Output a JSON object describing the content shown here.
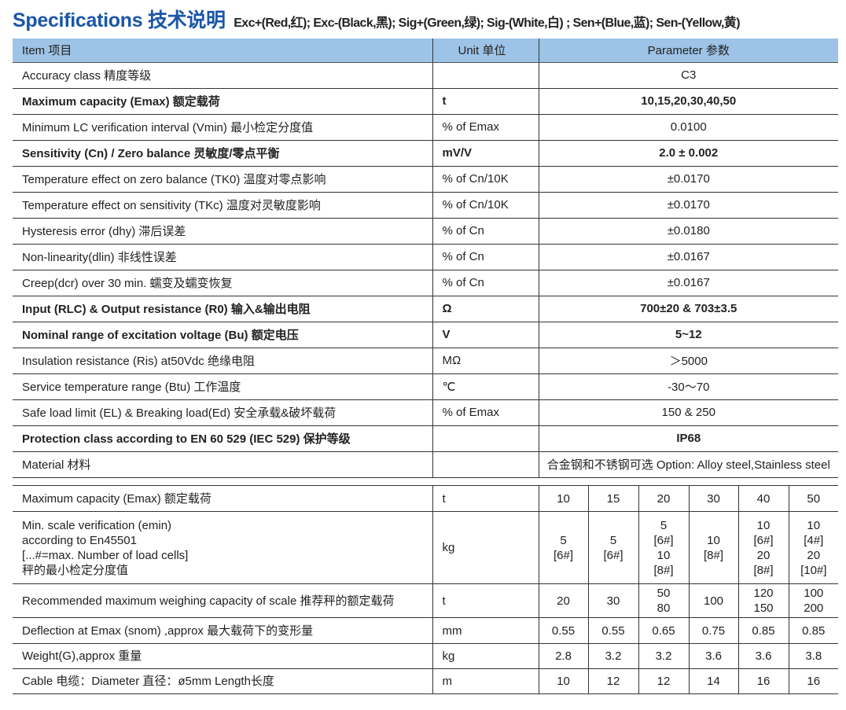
{
  "title": {
    "main": "Specifications 技术说明",
    "wiring": "Exc+(Red,红); Exc-(Black,黑); Sig+(Green,绿); Sig-(White,白) ; Sen+(Blue,蓝); Sen-(Yellow,黄)"
  },
  "colors": {
    "title": "#1a56a6",
    "header_bg": "#9dc3e7"
  },
  "spec_table": {
    "headers": [
      "Item 项目",
      "Unit 单位",
      "Parameter 参数"
    ],
    "rows": [
      {
        "item": "Accuracy class 精度等级",
        "unit": "",
        "value": "C3",
        "bold": false
      },
      {
        "item": "Maximum  capacity (Emax) 额定载荷",
        "unit": "t",
        "value": "10,15,20,30,40,50",
        "bold": true
      },
      {
        "item": "Minimum LC verification interval (Vmin) 最小检定分度值",
        "unit": "% of Emax",
        "value": "0.0100",
        "bold": false
      },
      {
        "item": "Sensitivity (Cn) / Zero balance 灵敏度/零点平衡",
        "unit": "mV/V",
        "value": "2.0 ± 0.002",
        "bold": true
      },
      {
        "item": "Temperature effect on zero balance  (TK0) 温度对零点影响",
        "unit": "% of Cn/10K",
        "value": "±0.0170",
        "bold": false
      },
      {
        "item": "Temperature effect on sensitivity (TKc) 温度对灵敏度影响",
        "unit": "% of Cn/10K",
        "value": "±0.0170",
        "bold": false
      },
      {
        "item": "Hysteresis error (dhy) 滞后误差",
        "unit": "% of Cn",
        "value": "±0.0180",
        "bold": false
      },
      {
        "item": "Non-linearity(dlin) 非线性误差",
        "unit": "% of Cn",
        "value": "±0.0167",
        "bold": false
      },
      {
        "item": "Creep(dcr) over 30 min. 蠕变及蠕变恢复",
        "unit": "% of Cn",
        "value": "±0.0167",
        "bold": false
      },
      {
        "item": "Input (RLC) & Output resistance (R0) 输入&输出电阻",
        "unit": "Ω",
        "value": "700±20 & 703±3.5",
        "bold": true
      },
      {
        "item": "Nominal range of excitation voltage (Bu) 额定电压",
        "unit": "V",
        "value": "5~12",
        "bold": true
      },
      {
        "item": "Insulation  resistance (Ris) at50Vdc 绝缘电阻",
        "unit": "MΩ",
        "value": "＞5000",
        "bold": false
      },
      {
        "item": "Service temperature range  (Btu) 工作温度",
        "unit": "℃",
        "value": "-30～70",
        "bold": false
      },
      {
        "item": "Safe load limit (EL) & Breaking load(Ed) 安全承载&破坏载荷",
        "unit": "% of Emax",
        "value": "150 & 250",
        "bold": false
      },
      {
        "item": "Protection class according to EN 60 529  (IEC 529) 保护等级",
        "unit": "",
        "value": "IP68",
        "bold": true
      },
      {
        "item": "Material 材料",
        "unit": "",
        "value": "合金钢和不锈钢可选 Option: Alloy steel,Stainless steel",
        "bold": false
      }
    ]
  },
  "capacity_table": {
    "rows": [
      {
        "item": "Maximum  capacity (Emax) 额定载荷",
        "unit": "t",
        "values": [
          "10",
          "15",
          "20",
          "30",
          "40",
          "50"
        ]
      },
      {
        "item": "Min. scale verification (emin)\naccording to En45501\n[...#=max. Number of load cells]\n秤的最小检定分度值",
        "unit": "kg",
        "values": [
          "5\n[6#]",
          "5\n[6#]",
          "5\n[6#]\n10\n[8#]",
          "10\n[8#]",
          "10\n[6#]\n20\n[8#]",
          "10\n[4#]\n20\n[10#]"
        ]
      },
      {
        "item": "Recommended maximum weighing capacity of scale 推荐秤的额定载荷",
        "unit": "t",
        "values": [
          "20",
          "30",
          "50\n80",
          "100",
          "120\n150",
          "100\n200"
        ]
      },
      {
        "item": "Deflection at  Emax (snom) ,approx 最大载荷下的变形量",
        "unit": "mm",
        "values": [
          "0.55",
          "0.55",
          "0.65",
          "0.75",
          "0.85",
          "0.85"
        ]
      },
      {
        "item": "Weight(G),approx 重量",
        "unit": "kg",
        "values": [
          "2.8",
          "3.2",
          "3.2",
          "3.6",
          "3.6",
          "3.8"
        ]
      },
      {
        "item": "Cable 电缆：Diameter 直径：ø5mm Length长度",
        "unit": "m",
        "values": [
          "10",
          "12",
          "12",
          "14",
          "16",
          "16"
        ]
      }
    ]
  }
}
